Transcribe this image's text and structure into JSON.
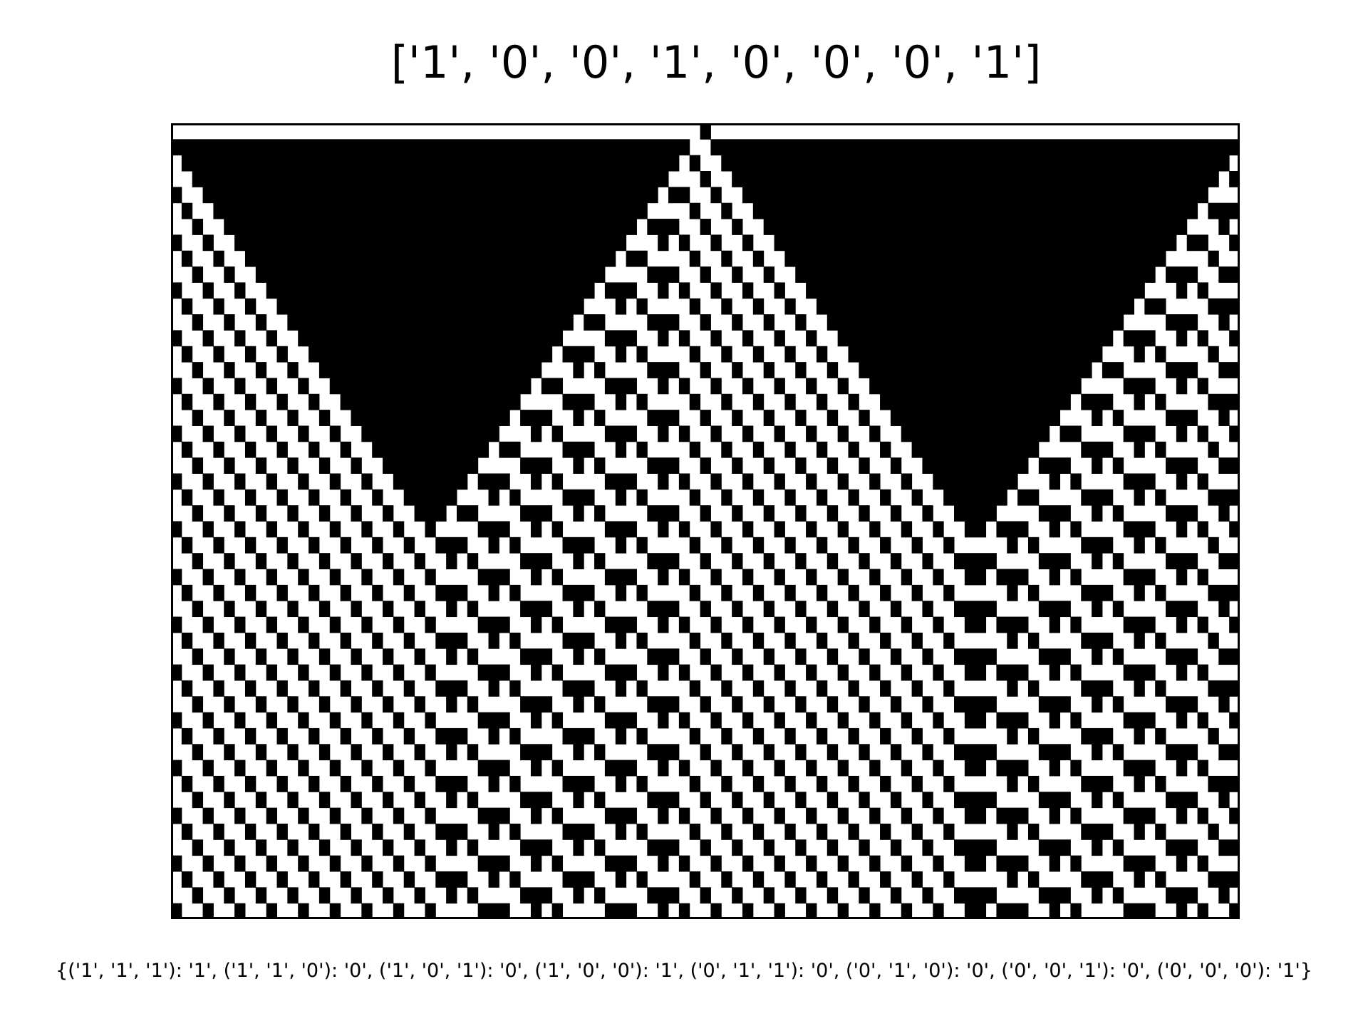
{
  "figure": {
    "title": "['1', '0', '0', '1', '0', '0', '0', '1']",
    "caption": "{('1', '1', '1'): '1', ('1', '1', '0'): '0', ('1', '0', '1'): '0', ('1', '0', '0'): '1', ('0', '1', '1'): '0', ('0', '1', '0'): '0', ('0', '0', '1'): '0', ('0', '0', '0'): '1'}"
  },
  "automaton": {
    "rule_bits": [
      "1",
      "0",
      "0",
      "1",
      "0",
      "0",
      "0",
      "1"
    ],
    "rule_table": [
      {
        "pattern": [
          "1",
          "1",
          "1"
        ],
        "output": "1"
      },
      {
        "pattern": [
          "1",
          "1",
          "0"
        ],
        "output": "0"
      },
      {
        "pattern": [
          "1",
          "0",
          "1"
        ],
        "output": "0"
      },
      {
        "pattern": [
          "1",
          "0",
          "0"
        ],
        "output": "1"
      },
      {
        "pattern": [
          "0",
          "1",
          "1"
        ],
        "output": "0"
      },
      {
        "pattern": [
          "0",
          "1",
          "0"
        ],
        "output": "0"
      },
      {
        "pattern": [
          "0",
          "0",
          "1"
        ],
        "output": "0"
      },
      {
        "pattern": [
          "0",
          "0",
          "0"
        ],
        "output": "1"
      }
    ],
    "width": 101,
    "generations": 50,
    "initial_live_cell": 50,
    "live_color": "#000000",
    "dead_color": "#ffffff"
  }
}
